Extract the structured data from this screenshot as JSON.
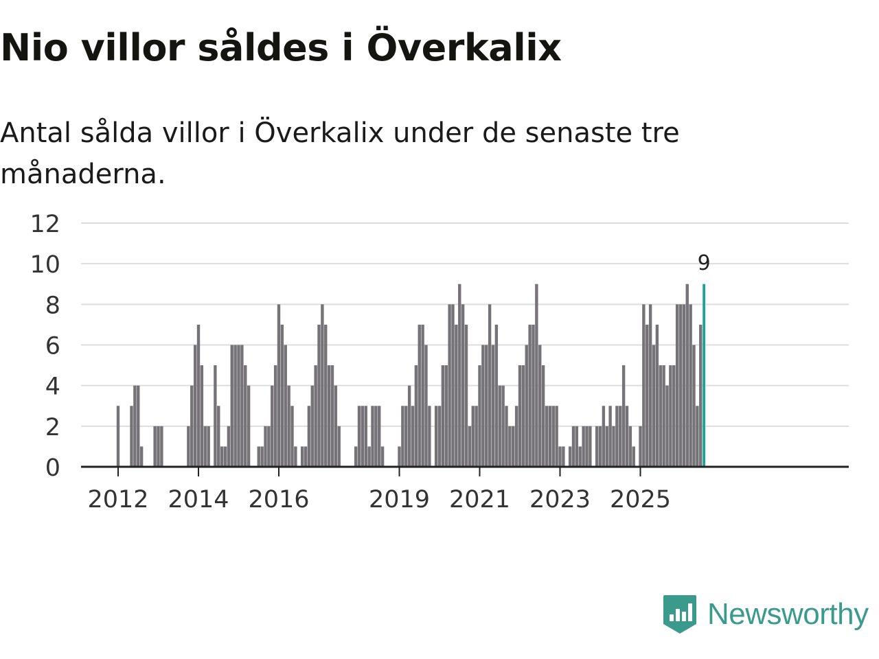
{
  "header": {
    "title": "Nio villor såldes i Överkalix",
    "subtitle": "Antal sålda villor i Överkalix under de senaste tre månaderna."
  },
  "brand": {
    "name": "Newsworthy",
    "icon": "newsworthy-logo-icon",
    "color": "#3a9a8c"
  },
  "colors": {
    "bar": "#757378",
    "highlight": "#19a595",
    "grid": "#dddddd",
    "axis": "#222222",
    "text": "#333333"
  },
  "chart_data": {
    "type": "bar",
    "title": "Nio villor såldes i Överkalix",
    "xlabel": "",
    "ylabel": "",
    "ylim": [
      0,
      12
    ],
    "yticks": [
      0,
      2,
      4,
      6,
      8,
      10,
      12
    ],
    "grid": true,
    "x_start": "2011-01",
    "xtick_labels": [
      {
        "label": "2012",
        "period": "2012-01"
      },
      {
        "label": "2014",
        "period": "2014-01"
      },
      {
        "label": "2016",
        "period": "2016-01"
      },
      {
        "label": "2019",
        "period": "2019-01"
      },
      {
        "label": "2021",
        "period": "2021-01"
      },
      {
        "label": "2023",
        "period": "2023-01"
      },
      {
        "label": "2025",
        "period": "2025-01"
      }
    ],
    "values": [
      0,
      0,
      0,
      0,
      0,
      0,
      0,
      0,
      0,
      0,
      0,
      0,
      3,
      0,
      0,
      0,
      3,
      4,
      4,
      1,
      0,
      0,
      0,
      2,
      2,
      2,
      0,
      0,
      0,
      0,
      0,
      0,
      0,
      2,
      4,
      6,
      7,
      5,
      2,
      2,
      0,
      5,
      3,
      1,
      1,
      2,
      6,
      6,
      6,
      6,
      5,
      4,
      0,
      0,
      1,
      1,
      2,
      2,
      4,
      5,
      8,
      7,
      6,
      4,
      3,
      1,
      0,
      1,
      1,
      3,
      4,
      5,
      7,
      8,
      7,
      5,
      5,
      4,
      2,
      0,
      0,
      0,
      0,
      1,
      3,
      3,
      3,
      1,
      3,
      3,
      3,
      1,
      0,
      0,
      0,
      0,
      1,
      3,
      3,
      4,
      3,
      5,
      7,
      7,
      6,
      3,
      0,
      3,
      3,
      5,
      5,
      8,
      8,
      7,
      9,
      8,
      7,
      2,
      3,
      3,
      5,
      6,
      6,
      8,
      6,
      7,
      4,
      4,
      3,
      2,
      2,
      3,
      5,
      5,
      6,
      7,
      7,
      9,
      6,
      5,
      3,
      3,
      3,
      3,
      1,
      1,
      0,
      1,
      2,
      2,
      1,
      2,
      2,
      2,
      0,
      2,
      2,
      3,
      2,
      3,
      2,
      3,
      3,
      5,
      3,
      2,
      1,
      0,
      2,
      8,
      7,
      8,
      6,
      7,
      5,
      5,
      4,
      5,
      5,
      8,
      8,
      8,
      9,
      8,
      6,
      3,
      7,
      9
    ],
    "highlight": {
      "index": 187,
      "label": "9"
    }
  }
}
